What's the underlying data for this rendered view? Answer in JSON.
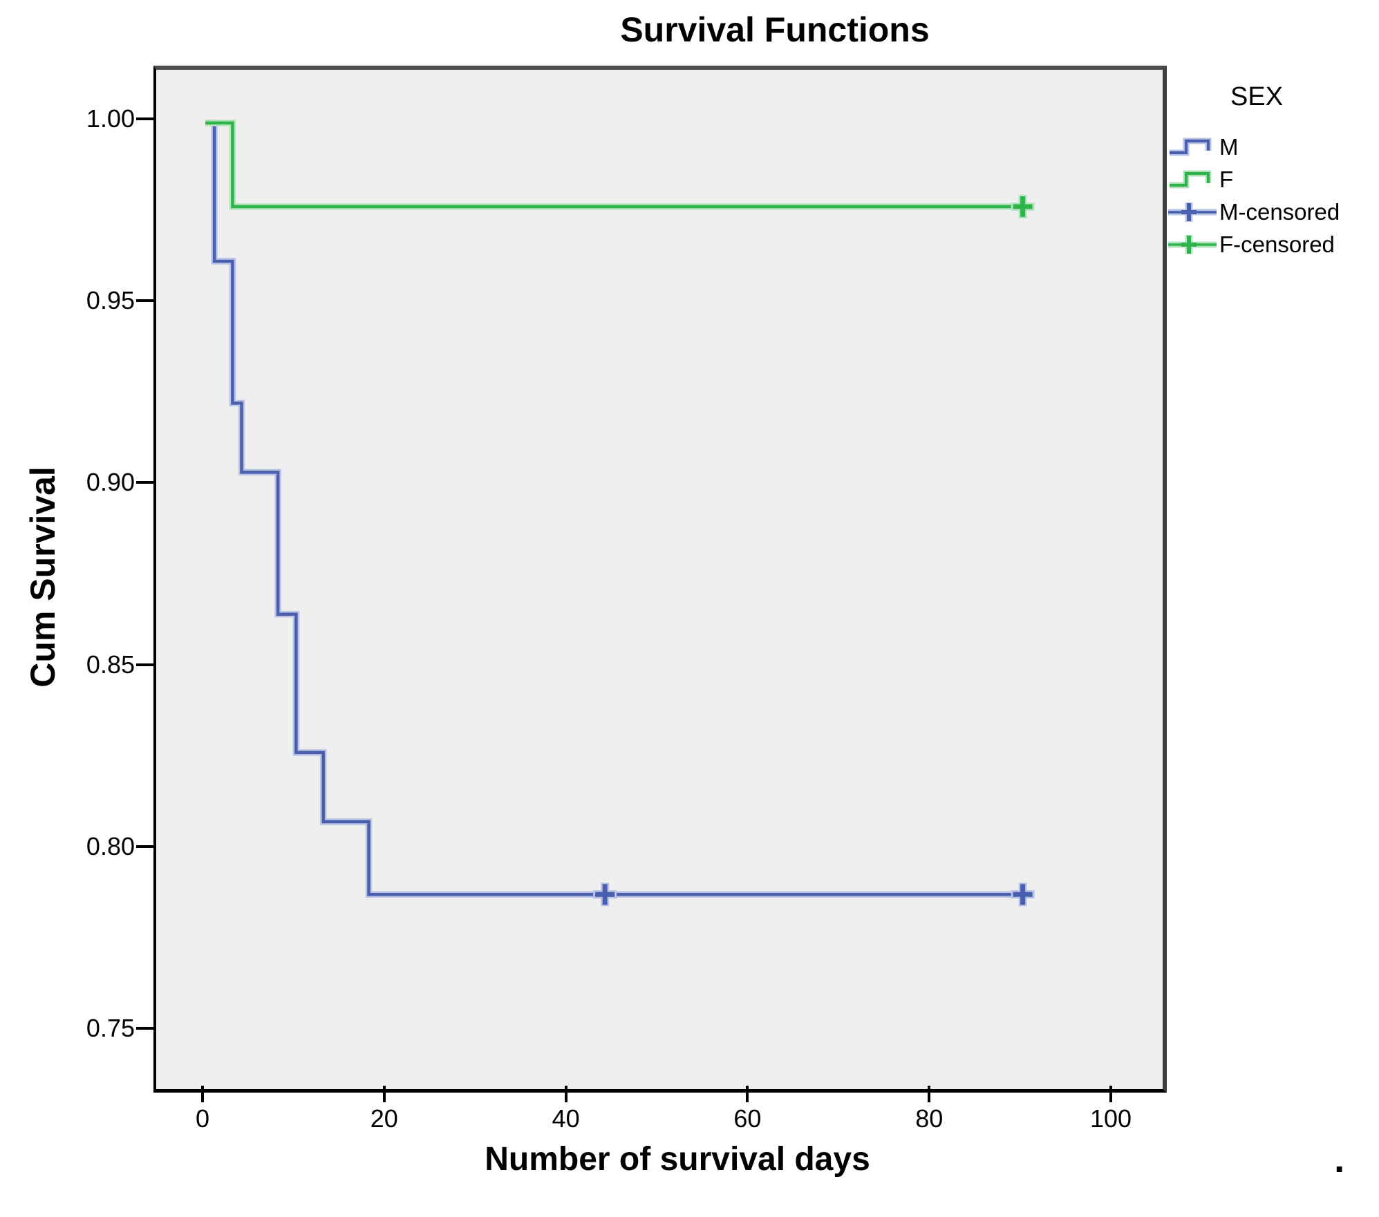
{
  "figure": {
    "caption_period": "."
  },
  "chart_data": {
    "type": "line",
    "subtype": "kaplan-meier-step",
    "title": "Survival Functions",
    "xlabel": "Number of survival days",
    "ylabel": "Cum Survival",
    "x_tick_labels": [
      "0",
      "20",
      "40",
      "60",
      "80",
      "100"
    ],
    "y_tick_labels": [
      "1.00",
      "0.95",
      "0.90",
      "0.85",
      "0.80",
      "0.75"
    ],
    "xlim": [
      -5.4,
      105.4
    ],
    "ylim": [
      0.7345,
      1.0146
    ],
    "grid": false,
    "plot_background": "#efefef",
    "legend": {
      "title": "SEX",
      "position": "right",
      "entries": [
        {
          "label": "M",
          "marker": "step"
        },
        {
          "label": "F",
          "marker": "step"
        },
        {
          "label": "M-censored",
          "marker": "censored"
        },
        {
          "label": "F-censored",
          "marker": "censored"
        }
      ]
    },
    "series": [
      {
        "name": "M",
        "color": "#4a5fae",
        "halo_color": "#b9c3e4",
        "points": [
          [
            0,
            1.0
          ],
          [
            1,
            1.0
          ],
          [
            1,
            0.962
          ],
          [
            3,
            0.962
          ],
          [
            3,
            0.923
          ],
          [
            4,
            0.923
          ],
          [
            4,
            0.904
          ],
          [
            8,
            0.904
          ],
          [
            8,
            0.865
          ],
          [
            10,
            0.865
          ],
          [
            10,
            0.827
          ],
          [
            13,
            0.827
          ],
          [
            13,
            0.808
          ],
          [
            18,
            0.808
          ],
          [
            18,
            0.788
          ],
          [
            90,
            0.788
          ]
        ],
        "censored": [
          [
            44,
            0.788
          ],
          [
            90,
            0.788
          ]
        ]
      },
      {
        "name": "F",
        "color": "#2fb44c",
        "halo_color": "#b5e3c0",
        "points": [
          [
            0,
            1.0
          ],
          [
            3,
            1.0
          ],
          [
            3,
            0.977
          ],
          [
            90,
            0.977
          ]
        ],
        "censored": [
          [
            90,
            0.977
          ]
        ]
      }
    ]
  }
}
